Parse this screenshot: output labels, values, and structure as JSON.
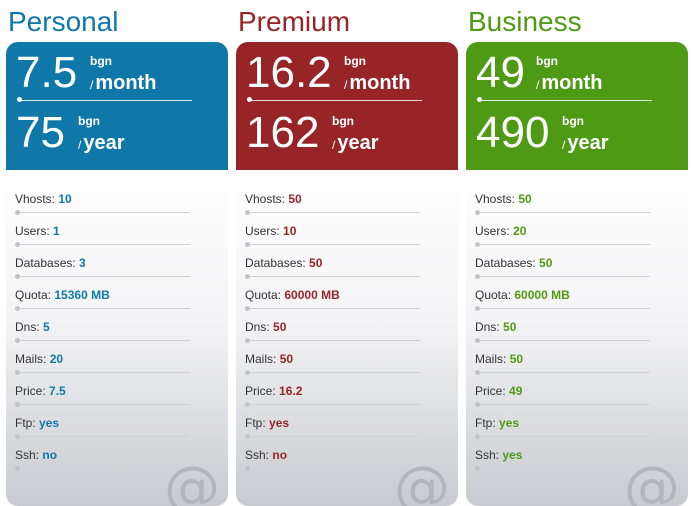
{
  "colors": {
    "personal": "#0f78a8",
    "premium": "#972427",
    "business": "#4f9a14"
  },
  "plans": [
    {
      "name": "Personal",
      "month_amount": "7.5",
      "year_amount": "75",
      "currency": "bgn",
      "month_label": "month",
      "year_label": "year",
      "features": [
        {
          "label": "Vhosts:",
          "value": "10"
        },
        {
          "label": "Users:",
          "value": "1"
        },
        {
          "label": "Databases:",
          "value": "3"
        },
        {
          "label": "Quota:",
          "value": "15360 MB"
        },
        {
          "label": "Dns:",
          "value": "5"
        },
        {
          "label": "Mails:",
          "value": "20"
        },
        {
          "label": "Price:",
          "value": "7.5"
        },
        {
          "label": "Ftp:",
          "value": "yes"
        },
        {
          "label": "Ssh:",
          "value": "no"
        }
      ]
    },
    {
      "name": "Premium",
      "month_amount": "16.2",
      "year_amount": "162",
      "currency": "bgn",
      "month_label": "month",
      "year_label": "year",
      "features": [
        {
          "label": "Vhosts:",
          "value": "50"
        },
        {
          "label": "Users:",
          "value": "10"
        },
        {
          "label": "Databases:",
          "value": "50"
        },
        {
          "label": "Quota:",
          "value": "60000 MB"
        },
        {
          "label": "Dns:",
          "value": "50"
        },
        {
          "label": "Mails:",
          "value": "50"
        },
        {
          "label": "Price:",
          "value": "16.2"
        },
        {
          "label": "Ftp:",
          "value": "yes"
        },
        {
          "label": "Ssh:",
          "value": "no"
        }
      ]
    },
    {
      "name": "Business",
      "month_amount": "49",
      "year_amount": "490",
      "currency": "bgn",
      "month_label": "month",
      "year_label": "year",
      "features": [
        {
          "label": "Vhosts:",
          "value": "50"
        },
        {
          "label": "Users:",
          "value": "20"
        },
        {
          "label": "Databases:",
          "value": "50"
        },
        {
          "label": "Quota:",
          "value": "60000 MB"
        },
        {
          "label": "Dns:",
          "value": "50"
        },
        {
          "label": "Mails:",
          "value": "50"
        },
        {
          "label": "Price:",
          "value": "49"
        },
        {
          "label": "Ftp:",
          "value": "yes"
        },
        {
          "label": "Ssh:",
          "value": "yes"
        }
      ]
    }
  ]
}
